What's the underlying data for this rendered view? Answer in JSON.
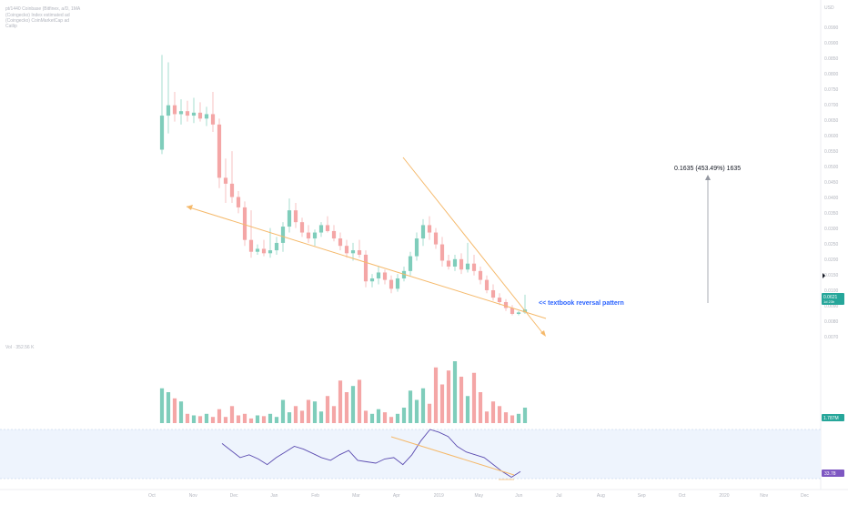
{
  "header": {
    "title": "pt/1440 Coinbase (Bitfinex, a/D, 1MA",
    "line2": "(Coingecko) Index estimated ad",
    "line3": "(Coingecko) CoinMarketCap ad",
    "line4": "Catlip"
  },
  "top_right_label": "USD",
  "volume_label": "Vol · 352.56 K",
  "colors": {
    "up": "#7fcdbb",
    "down": "#f4a6a6",
    "trend": "#f5b96b",
    "rsi_line": "#5b4bb0",
    "rsi_band": "#eef4fd",
    "annotation": "#2962ff"
  },
  "chart_data": {
    "type": "candlestick",
    "ylim": [
      0.02,
      0.21
    ],
    "price_ticks": [
      "0.0990",
      "0.0900",
      "0.0850",
      "0.0800",
      "0.0750",
      "0.0700",
      "0.0650",
      "0.0600",
      "0.0550",
      "0.0500",
      "0.0450",
      "0.0400",
      "0.0350",
      "0.0300",
      "0.0250",
      "0.0200",
      "0.0150",
      "0.0100",
      "0.0090",
      "0.0080",
      "0.0070"
    ],
    "time_ticks": [
      "Oct",
      "Nov",
      "Dec",
      "Jan",
      "Feb",
      "Mar",
      "Apr",
      "2019",
      "May",
      "Jun",
      "Jul",
      "Aug",
      "Sep",
      "Oct",
      "2020",
      "Nov",
      "Dec"
    ],
    "candles": [
      {
        "o": 0.131,
        "h": 0.195,
        "l": 0.128,
        "c": 0.154
      },
      {
        "o": 0.154,
        "h": 0.19,
        "l": 0.142,
        "c": 0.161
      },
      {
        "o": 0.161,
        "h": 0.17,
        "l": 0.15,
        "c": 0.155
      },
      {
        "o": 0.155,
        "h": 0.165,
        "l": 0.148,
        "c": 0.157
      },
      {
        "o": 0.157,
        "h": 0.164,
        "l": 0.15,
        "c": 0.154
      },
      {
        "o": 0.154,
        "h": 0.166,
        "l": 0.149,
        "c": 0.156
      },
      {
        "o": 0.156,
        "h": 0.163,
        "l": 0.15,
        "c": 0.152
      },
      {
        "o": 0.152,
        "h": 0.16,
        "l": 0.147,
        "c": 0.155
      },
      {
        "o": 0.155,
        "h": 0.17,
        "l": 0.143,
        "c": 0.148
      },
      {
        "o": 0.148,
        "h": 0.152,
        "l": 0.105,
        "c": 0.112
      },
      {
        "o": 0.112,
        "h": 0.125,
        "l": 0.095,
        "c": 0.108
      },
      {
        "o": 0.108,
        "h": 0.13,
        "l": 0.095,
        "c": 0.099
      },
      {
        "o": 0.099,
        "h": 0.103,
        "l": 0.088,
        "c": 0.092
      },
      {
        "o": 0.092,
        "h": 0.096,
        "l": 0.066,
        "c": 0.07
      },
      {
        "o": 0.07,
        "h": 0.09,
        "l": 0.058,
        "c": 0.062
      },
      {
        "o": 0.062,
        "h": 0.067,
        "l": 0.06,
        "c": 0.064
      },
      {
        "o": 0.064,
        "h": 0.07,
        "l": 0.059,
        "c": 0.061
      },
      {
        "o": 0.061,
        "h": 0.078,
        "l": 0.058,
        "c": 0.063
      },
      {
        "o": 0.063,
        "h": 0.072,
        "l": 0.06,
        "c": 0.068
      },
      {
        "o": 0.068,
        "h": 0.082,
        "l": 0.062,
        "c": 0.079
      },
      {
        "o": 0.079,
        "h": 0.098,
        "l": 0.075,
        "c": 0.09
      },
      {
        "o": 0.09,
        "h": 0.095,
        "l": 0.078,
        "c": 0.082
      },
      {
        "o": 0.082,
        "h": 0.085,
        "l": 0.072,
        "c": 0.075
      },
      {
        "o": 0.075,
        "h": 0.08,
        "l": 0.068,
        "c": 0.071
      },
      {
        "o": 0.071,
        "h": 0.077,
        "l": 0.066,
        "c": 0.075
      },
      {
        "o": 0.075,
        "h": 0.082,
        "l": 0.072,
        "c": 0.08
      },
      {
        "o": 0.08,
        "h": 0.086,
        "l": 0.075,
        "c": 0.076
      },
      {
        "o": 0.076,
        "h": 0.08,
        "l": 0.069,
        "c": 0.071
      },
      {
        "o": 0.071,
        "h": 0.075,
        "l": 0.063,
        "c": 0.066
      },
      {
        "o": 0.066,
        "h": 0.07,
        "l": 0.058,
        "c": 0.061
      },
      {
        "o": 0.061,
        "h": 0.068,
        "l": 0.056,
        "c": 0.063
      },
      {
        "o": 0.063,
        "h": 0.07,
        "l": 0.058,
        "c": 0.06
      },
      {
        "o": 0.06,
        "h": 0.063,
        "l": 0.038,
        "c": 0.042
      },
      {
        "o": 0.042,
        "h": 0.047,
        "l": 0.038,
        "c": 0.044
      },
      {
        "o": 0.044,
        "h": 0.052,
        "l": 0.04,
        "c": 0.048
      },
      {
        "o": 0.048,
        "h": 0.05,
        "l": 0.04,
        "c": 0.043
      },
      {
        "o": 0.043,
        "h": 0.046,
        "l": 0.034,
        "c": 0.037
      },
      {
        "o": 0.037,
        "h": 0.047,
        "l": 0.035,
        "c": 0.044
      },
      {
        "o": 0.044,
        "h": 0.052,
        "l": 0.042,
        "c": 0.049
      },
      {
        "o": 0.049,
        "h": 0.062,
        "l": 0.046,
        "c": 0.059
      },
      {
        "o": 0.059,
        "h": 0.075,
        "l": 0.056,
        "c": 0.071
      },
      {
        "o": 0.071,
        "h": 0.084,
        "l": 0.066,
        "c": 0.08
      },
      {
        "o": 0.08,
        "h": 0.086,
        "l": 0.07,
        "c": 0.075
      },
      {
        "o": 0.075,
        "h": 0.078,
        "l": 0.064,
        "c": 0.067
      },
      {
        "o": 0.067,
        "h": 0.072,
        "l": 0.052,
        "c": 0.056
      },
      {
        "o": 0.056,
        "h": 0.06,
        "l": 0.05,
        "c": 0.052
      },
      {
        "o": 0.052,
        "h": 0.06,
        "l": 0.049,
        "c": 0.057
      },
      {
        "o": 0.057,
        "h": 0.061,
        "l": 0.047,
        "c": 0.05
      },
      {
        "o": 0.05,
        "h": 0.068,
        "l": 0.048,
        "c": 0.054
      },
      {
        "o": 0.054,
        "h": 0.06,
        "l": 0.046,
        "c": 0.049
      },
      {
        "o": 0.049,
        "h": 0.052,
        "l": 0.04,
        "c": 0.043
      },
      {
        "o": 0.043,
        "h": 0.046,
        "l": 0.034,
        "c": 0.036
      },
      {
        "o": 0.036,
        "h": 0.04,
        "l": 0.029,
        "c": 0.031
      },
      {
        "o": 0.031,
        "h": 0.034,
        "l": 0.026,
        "c": 0.028
      },
      {
        "o": 0.028,
        "h": 0.03,
        "l": 0.022,
        "c": 0.024
      },
      {
        "o": 0.024,
        "h": 0.026,
        "l": 0.019,
        "c": 0.02
      },
      {
        "o": 0.02,
        "h": 0.022,
        "l": 0.019,
        "c": 0.021
      },
      {
        "o": 0.021,
        "h": 0.033,
        "l": 0.02,
        "c": 0.023
      }
    ],
    "volume": [
      0.45,
      0.4,
      0.32,
      0.28,
      0.12,
      0.1,
      0.09,
      0.12,
      0.08,
      0.18,
      0.08,
      0.22,
      0.1,
      0.12,
      0.06,
      0.1,
      0.09,
      0.12,
      0.08,
      0.3,
      0.14,
      0.22,
      0.16,
      0.3,
      0.28,
      0.15,
      0.35,
      0.22,
      0.55,
      0.4,
      0.48,
      0.56,
      0.16,
      0.12,
      0.18,
      0.14,
      0.08,
      0.12,
      0.2,
      0.42,
      0.3,
      0.45,
      0.25,
      0.72,
      0.5,
      0.68,
      0.8,
      0.6,
      0.35,
      0.65,
      0.4,
      0.15,
      0.28,
      0.22,
      0.14,
      0.1,
      0.12,
      0.2
    ],
    "rsi": [
      50,
      45,
      40,
      42,
      39,
      35,
      40,
      44,
      48,
      46,
      43,
      40,
      38,
      42,
      45,
      38,
      37,
      36,
      39,
      40,
      35,
      42,
      52,
      60,
      58,
      55,
      48,
      44,
      42,
      40,
      35,
      30,
      26,
      30
    ],
    "current_price": "0.0621",
    "current_price_sub": "1d 23h",
    "volume_value": "1.787M",
    "rsi_value": "33.78",
    "measure_label": "0.1635 (453.49%) 1635",
    "annotation": "<< textbook reversal pattern"
  }
}
